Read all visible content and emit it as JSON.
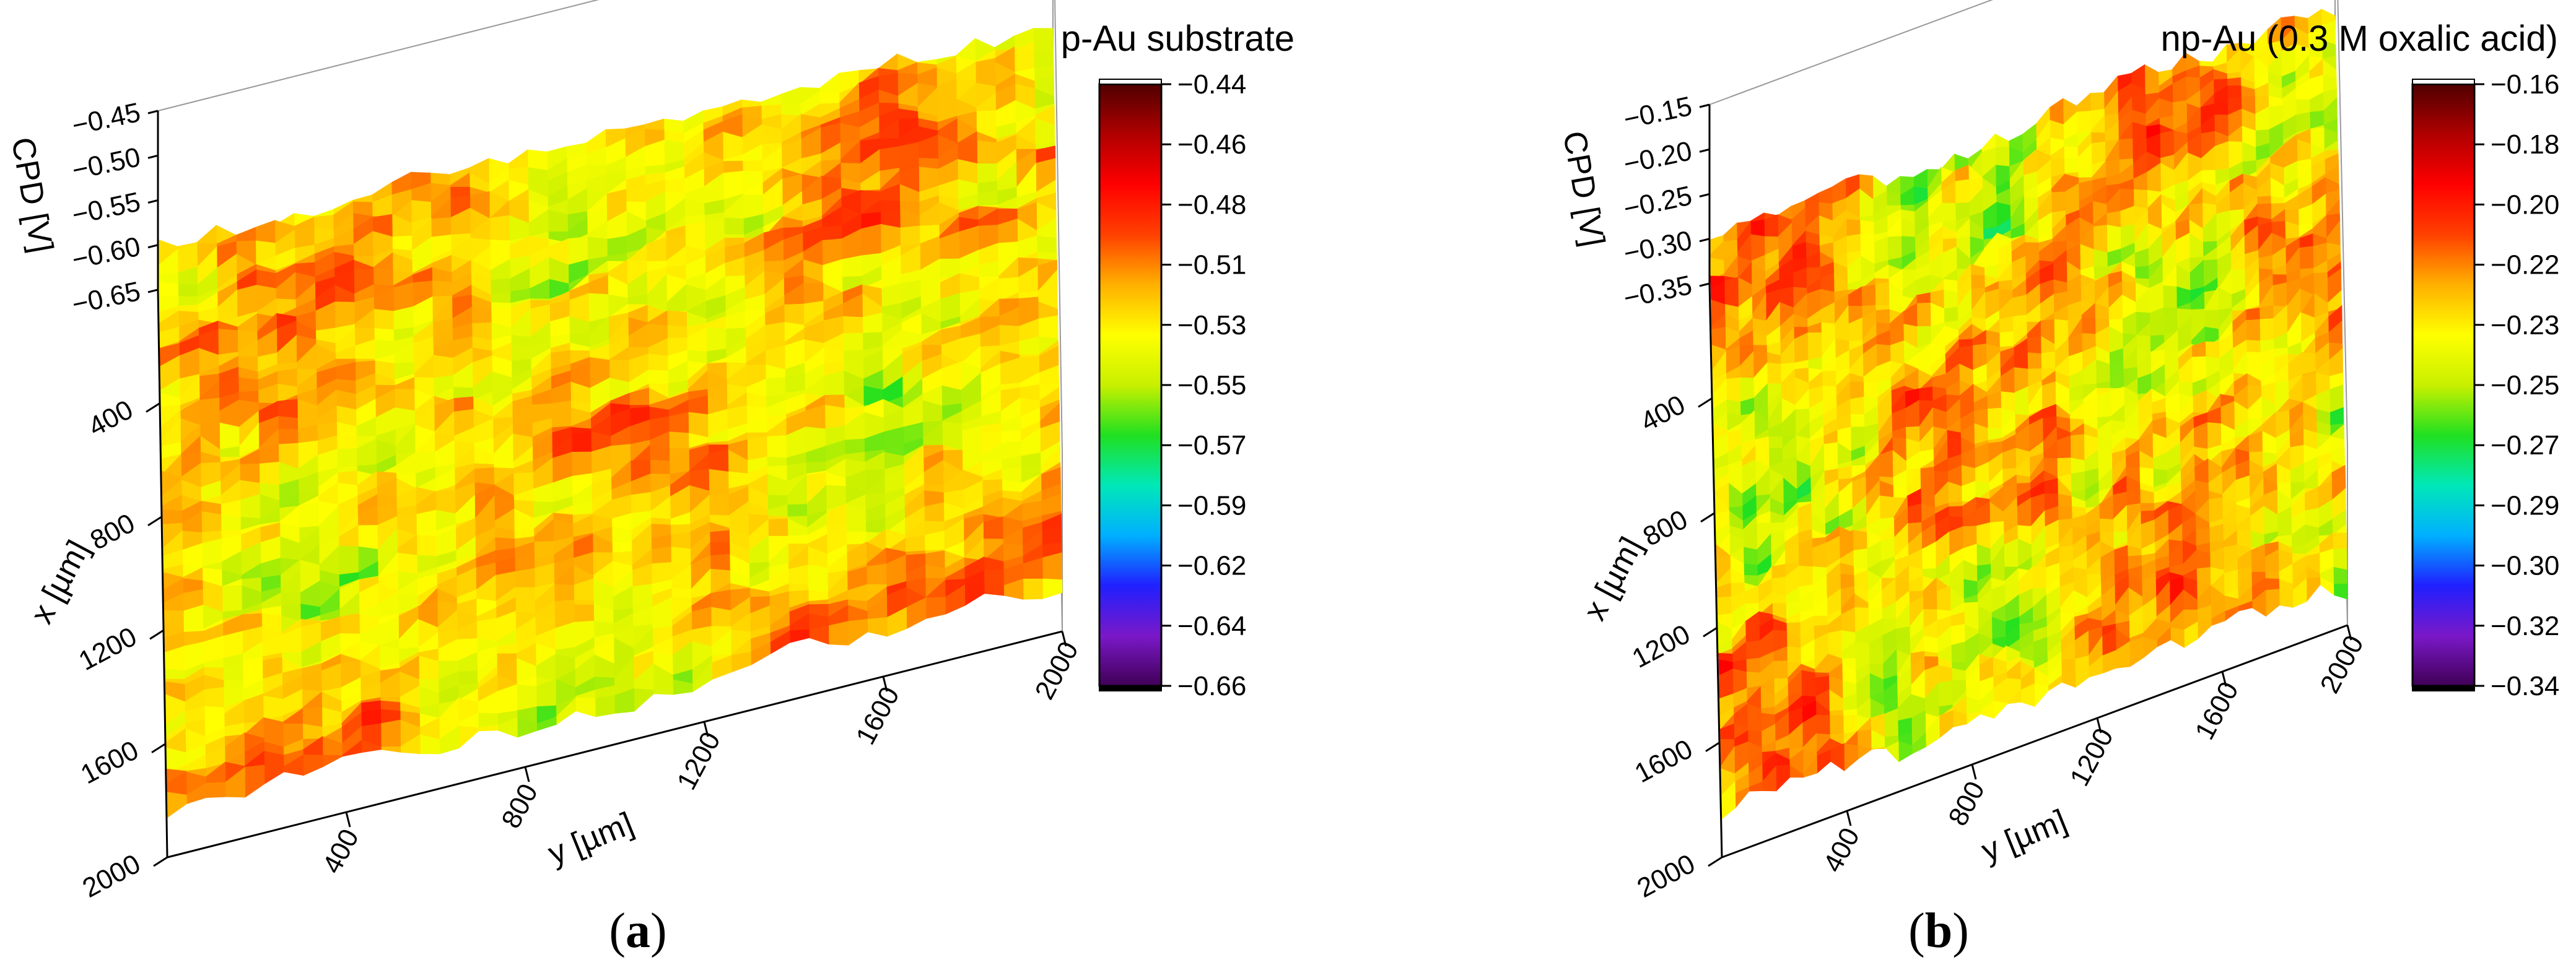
{
  "chart_data": [
    {
      "type": "surface3d",
      "panel_label": "a",
      "title": "p-Au substrate",
      "xlabel": "x [µm]",
      "ylabel": "y [µm]",
      "zlabel": "CPD [V]",
      "x_ticks": [
        "400",
        "800",
        "1200",
        "1600",
        "2000"
      ],
      "y_ticks": [
        "400",
        "800",
        "1200",
        "1600",
        "2000"
      ],
      "z_ticks": [
        "−0.45",
        "−0.50",
        "−0.55",
        "−0.60",
        "−0.65"
      ],
      "xlim": [
        0,
        2000
      ],
      "ylim": [
        0,
        2000
      ],
      "zlim": [
        -0.66,
        -0.44
      ],
      "colorbar_ticks": [
        "−0.44",
        "−0.46",
        "−0.48",
        "−0.51",
        "−0.53",
        "−0.55",
        "−0.57",
        "−0.59",
        "−0.62",
        "−0.64",
        "−0.66"
      ],
      "colorbar_range": [
        -0.66,
        -0.44
      ],
      "colormap": [
        "#400056",
        "#7a18c8",
        "#2020ff",
        "#00b0ff",
        "#00e8b8",
        "#20e020",
        "#c8f000",
        "#ffff00",
        "#ffb000",
        "#ff4000",
        "#ff0000",
        "#b00000",
        "#500000"
      ],
      "surface_mean": -0.515,
      "surface_features": "mostly red-orange with scattered yellow-green patches"
    },
    {
      "type": "surface3d",
      "panel_label": "b",
      "title": "np-Au (0.3 M oxalic acid)",
      "xlabel": "x [µm]",
      "ylabel": "y [µm]",
      "zlabel": "CPD [V]",
      "x_ticks": [
        "400",
        "800",
        "1200",
        "1600",
        "2000"
      ],
      "y_ticks": [
        "400",
        "800",
        "1200",
        "1600",
        "2000"
      ],
      "z_ticks": [
        "−0.15",
        "−0.20",
        "−0.25",
        "−0.30",
        "−0.35"
      ],
      "xlim": [
        0,
        2000
      ],
      "ylim": [
        0,
        2000
      ],
      "zlim": [
        -0.35,
        -0.15
      ],
      "colorbar_ticks": [
        "−0.16",
        "−0.18",
        "−0.20",
        "−0.22",
        "−0.23",
        "−0.25",
        "−0.27",
        "−0.29",
        "−0.30",
        "−0.32",
        "−0.34"
      ],
      "colorbar_range": [
        -0.34,
        -0.16
      ],
      "colormap": [
        "#400056",
        "#7a18c8",
        "#2020ff",
        "#00b0ff",
        "#00e8b8",
        "#20e020",
        "#c8f000",
        "#ffff00",
        "#ffb000",
        "#ff4000",
        "#ff0000",
        "#b00000",
        "#500000"
      ],
      "surface_mean": -0.235,
      "surface_features": "fine-grained mix of red, orange and yellow with few green spots"
    }
  ]
}
